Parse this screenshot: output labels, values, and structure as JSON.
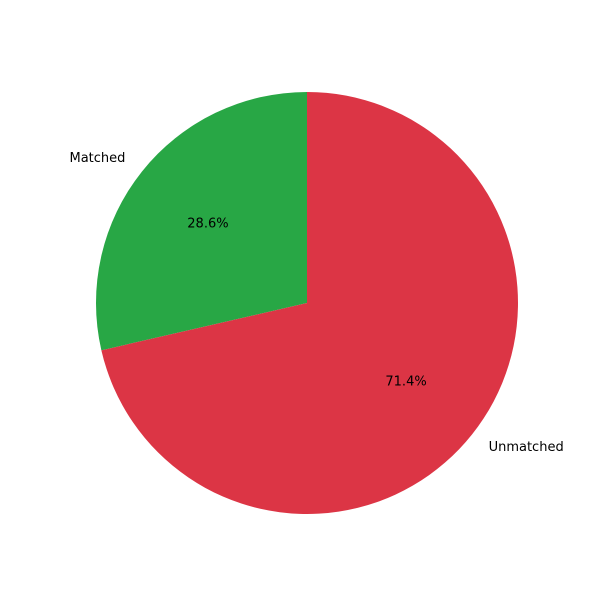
{
  "chart_data": {
    "type": "pie",
    "title": "",
    "categories": [
      "Matched",
      "Unmatched"
    ],
    "values": [
      28.6,
      71.4
    ],
    "value_labels": [
      "28.6%",
      "71.4%"
    ],
    "colors": [
      "#28a745",
      "#dc3545"
    ],
    "start_angle": "top",
    "direction": "counterclockwise",
    "legend": "none"
  }
}
